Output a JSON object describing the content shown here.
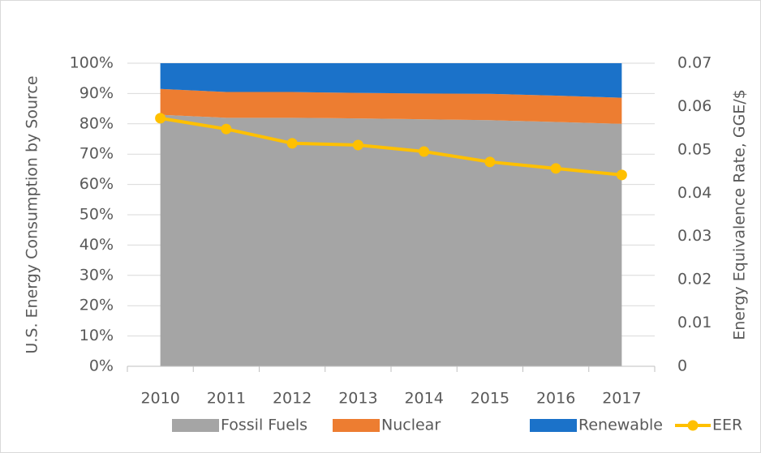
{
  "chart_data": {
    "type": "area",
    "categories": [
      "2010",
      "2011",
      "2012",
      "2013",
      "2014",
      "2015",
      "2016",
      "2017"
    ],
    "series": [
      {
        "name": "Fossil Fuels",
        "color": "#a5a5a5",
        "values": [
          83,
          82,
          82,
          81.8,
          81.5,
          81.2,
          80.6,
          80
        ]
      },
      {
        "name": "Nuclear",
        "color": "#ed7d31",
        "values": [
          8.5,
          8.5,
          8.5,
          8.4,
          8.5,
          8.7,
          8.7,
          8.6
        ]
      },
      {
        "name": "Renewable",
        "color": "#1b72c9",
        "values": [
          8.5,
          9.5,
          9.5,
          9.8,
          10,
          10.1,
          10.7,
          11.4
        ]
      },
      {
        "name": "EER",
        "type": "line",
        "axis": "y2",
        "color": "#ffc000",
        "values": [
          0.0573,
          0.0548,
          0.0515,
          0.0511,
          0.0496,
          0.0472,
          0.0457,
          0.0442
        ]
      }
    ],
    "ylabel": "U.S. Energy Consumption by Source",
    "y2label": "Energy Equivalence Rate, GGE/$",
    "ylim": [
      0,
      100
    ],
    "yticks": [
      {
        "value": 0,
        "label": "0%"
      },
      {
        "value": 10,
        "label": "10%"
      },
      {
        "value": 20,
        "label": "20%"
      },
      {
        "value": 30,
        "label": "30%"
      },
      {
        "value": 40,
        "label": "40%"
      },
      {
        "value": 50,
        "label": "50%"
      },
      {
        "value": 60,
        "label": "60%"
      },
      {
        "value": 70,
        "label": "70%"
      },
      {
        "value": 80,
        "label": "80%"
      },
      {
        "value": 90,
        "label": "90%"
      },
      {
        "value": 100,
        "label": "100%"
      }
    ],
    "y2lim": [
      0,
      0.07
    ],
    "y2ticks": [
      0,
      0.01,
      0.02,
      0.03,
      0.04,
      0.05,
      0.06,
      0.07
    ],
    "grid": true,
    "stacked": true,
    "legend": "bottom"
  }
}
